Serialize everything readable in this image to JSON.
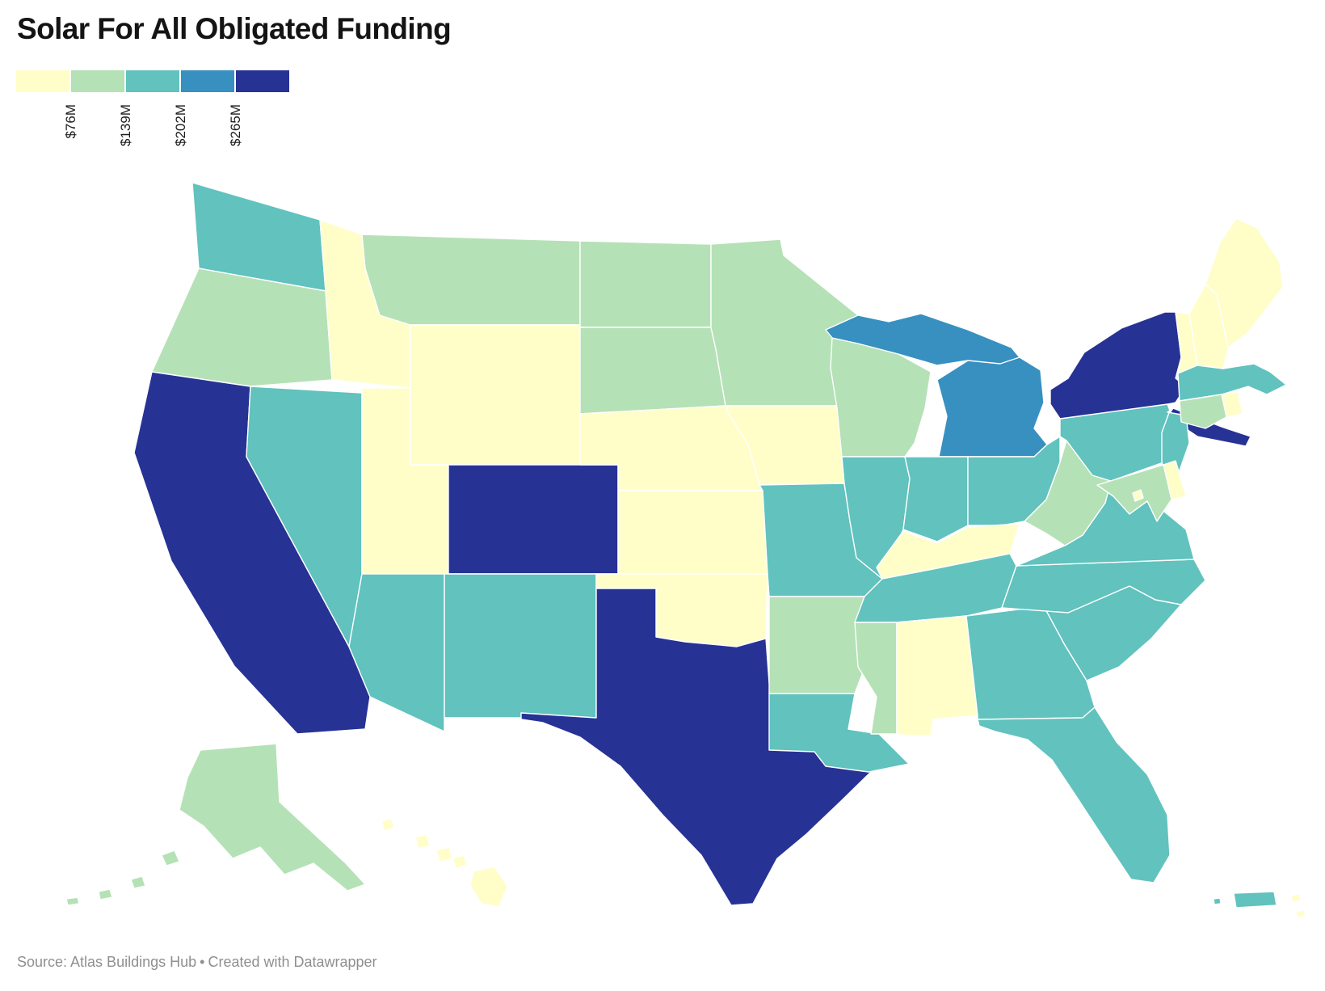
{
  "header": {
    "title": "Solar For All Obligated Funding"
  },
  "legend": {
    "colors": [
      "#FFFEC9",
      "#B5E1B6",
      "#61C2BE",
      "#3790C0",
      "#273295"
    ],
    "tick_labels": [
      "$76M",
      "$139M",
      "$202M",
      "$265M"
    ]
  },
  "footer": {
    "source_label": "Source: Atlas Buildings Hub",
    "separator": "•",
    "credit": "Created with Datawrapper"
  },
  "map": {
    "states": [
      {
        "code": "WA",
        "name": "Washington",
        "bin": 3
      },
      {
        "code": "OR",
        "name": "Oregon",
        "bin": 2
      },
      {
        "code": "CA",
        "name": "California",
        "bin": 5
      },
      {
        "code": "NV",
        "name": "Nevada",
        "bin": 3
      },
      {
        "code": "ID",
        "name": "Idaho",
        "bin": 1
      },
      {
        "code": "MT",
        "name": "Montana",
        "bin": 2
      },
      {
        "code": "WY",
        "name": "Wyoming",
        "bin": 1
      },
      {
        "code": "UT",
        "name": "Utah",
        "bin": 1
      },
      {
        "code": "CO",
        "name": "Colorado",
        "bin": 5
      },
      {
        "code": "AZ",
        "name": "Arizona",
        "bin": 3
      },
      {
        "code": "NM",
        "name": "New Mexico",
        "bin": 3
      },
      {
        "code": "ND",
        "name": "North Dakota",
        "bin": 2
      },
      {
        "code": "SD",
        "name": "South Dakota",
        "bin": 2
      },
      {
        "code": "NE",
        "name": "Nebraska",
        "bin": 1
      },
      {
        "code": "KS",
        "name": "Kansas",
        "bin": 1
      },
      {
        "code": "OK",
        "name": "Oklahoma",
        "bin": 1
      },
      {
        "code": "TX",
        "name": "Texas",
        "bin": 5
      },
      {
        "code": "MN",
        "name": "Minnesota",
        "bin": 2
      },
      {
        "code": "IA",
        "name": "Iowa",
        "bin": 1
      },
      {
        "code": "MO",
        "name": "Missouri",
        "bin": 3
      },
      {
        "code": "AR",
        "name": "Arkansas",
        "bin": 2
      },
      {
        "code": "LA",
        "name": "Louisiana",
        "bin": 3
      },
      {
        "code": "WI",
        "name": "Wisconsin",
        "bin": 2
      },
      {
        "code": "IL",
        "name": "Illinois",
        "bin": 3
      },
      {
        "code": "MI",
        "name": "Michigan",
        "bin": 4
      },
      {
        "code": "IN",
        "name": "Indiana",
        "bin": 3
      },
      {
        "code": "OH",
        "name": "Ohio",
        "bin": 3
      },
      {
        "code": "KY",
        "name": "Kentucky",
        "bin": 1
      },
      {
        "code": "TN",
        "name": "Tennessee",
        "bin": 3
      },
      {
        "code": "MS",
        "name": "Mississippi",
        "bin": 2
      },
      {
        "code": "AL",
        "name": "Alabama",
        "bin": 1
      },
      {
        "code": "GA",
        "name": "Georgia",
        "bin": 3
      },
      {
        "code": "FL",
        "name": "Florida",
        "bin": 3
      },
      {
        "code": "SC",
        "name": "South Carolina",
        "bin": 3
      },
      {
        "code": "NC",
        "name": "North Carolina",
        "bin": 3
      },
      {
        "code": "VA",
        "name": "Virginia",
        "bin": 3
      },
      {
        "code": "WV",
        "name": "West Virginia",
        "bin": 2
      },
      {
        "code": "PA",
        "name": "Pennsylvania",
        "bin": 3
      },
      {
        "code": "NY",
        "name": "New York",
        "bin": 5
      },
      {
        "code": "NJ",
        "name": "New Jersey",
        "bin": 3
      },
      {
        "code": "DE",
        "name": "Delaware",
        "bin": 1
      },
      {
        "code": "MD",
        "name": "Maryland",
        "bin": 2
      },
      {
        "code": "DC",
        "name": "District of Columbia",
        "bin": 1
      },
      {
        "code": "VT",
        "name": "Vermont",
        "bin": 1
      },
      {
        "code": "NH",
        "name": "New Hampshire",
        "bin": 1
      },
      {
        "code": "ME",
        "name": "Maine",
        "bin": 1
      },
      {
        "code": "MA",
        "name": "Massachusetts",
        "bin": 3
      },
      {
        "code": "RI",
        "name": "Rhode Island",
        "bin": 1
      },
      {
        "code": "CT",
        "name": "Connecticut",
        "bin": 2
      },
      {
        "code": "AK",
        "name": "Alaska",
        "bin": 2
      },
      {
        "code": "HI",
        "name": "Hawaii",
        "bin": 1
      },
      {
        "code": "PR",
        "name": "Puerto Rico",
        "bin": 3
      },
      {
        "code": "VI",
        "name": "U.S. Virgin Islands",
        "bin": 1
      }
    ]
  },
  "chart_data": {
    "type": "heatmap",
    "subtype": "choropleth-us-states",
    "title": "Solar For All Obligated Funding",
    "unit": "USD millions",
    "legend_position": "top-left",
    "legend_tick_labels": [
      "$76M",
      "$139M",
      "$202M",
      "$265M"
    ],
    "color_classes": [
      {
        "color": "#FFFEC9",
        "range": "below $76M",
        "states": [
          "Idaho",
          "Wyoming",
          "Utah",
          "Nebraska",
          "Kansas",
          "Oklahoma",
          "Iowa",
          "Kentucky",
          "Alabama",
          "Maine",
          "New Hampshire",
          "Vermont",
          "Rhode Island",
          "Delaware",
          "District of Columbia",
          "Hawaii",
          "U.S. Virgin Islands"
        ]
      },
      {
        "color": "#B5E1B6",
        "range": "$76M to $139M",
        "states": [
          "Oregon",
          "Montana",
          "North Dakota",
          "South Dakota",
          "Minnesota",
          "Wisconsin",
          "Arkansas",
          "Mississippi",
          "West Virginia",
          "Maryland",
          "Connecticut",
          "Alaska"
        ]
      },
      {
        "color": "#61C2BE",
        "range": "$139M to $202M",
        "states": [
          "Washington",
          "Nevada",
          "Arizona",
          "New Mexico",
          "Missouri",
          "Illinois",
          "Indiana",
          "Ohio",
          "Pennsylvania",
          "New Jersey",
          "Virginia",
          "Tennessee",
          "North Carolina",
          "South Carolina",
          "Georgia",
          "Florida",
          "Louisiana",
          "Massachusetts",
          "Puerto Rico"
        ]
      },
      {
        "color": "#3790C0",
        "range": "$202M to $265M",
        "states": [
          "Michigan"
        ]
      },
      {
        "color": "#273295",
        "range": "above $265M",
        "states": [
          "California",
          "Colorado",
          "Texas",
          "New York"
        ]
      }
    ]
  }
}
